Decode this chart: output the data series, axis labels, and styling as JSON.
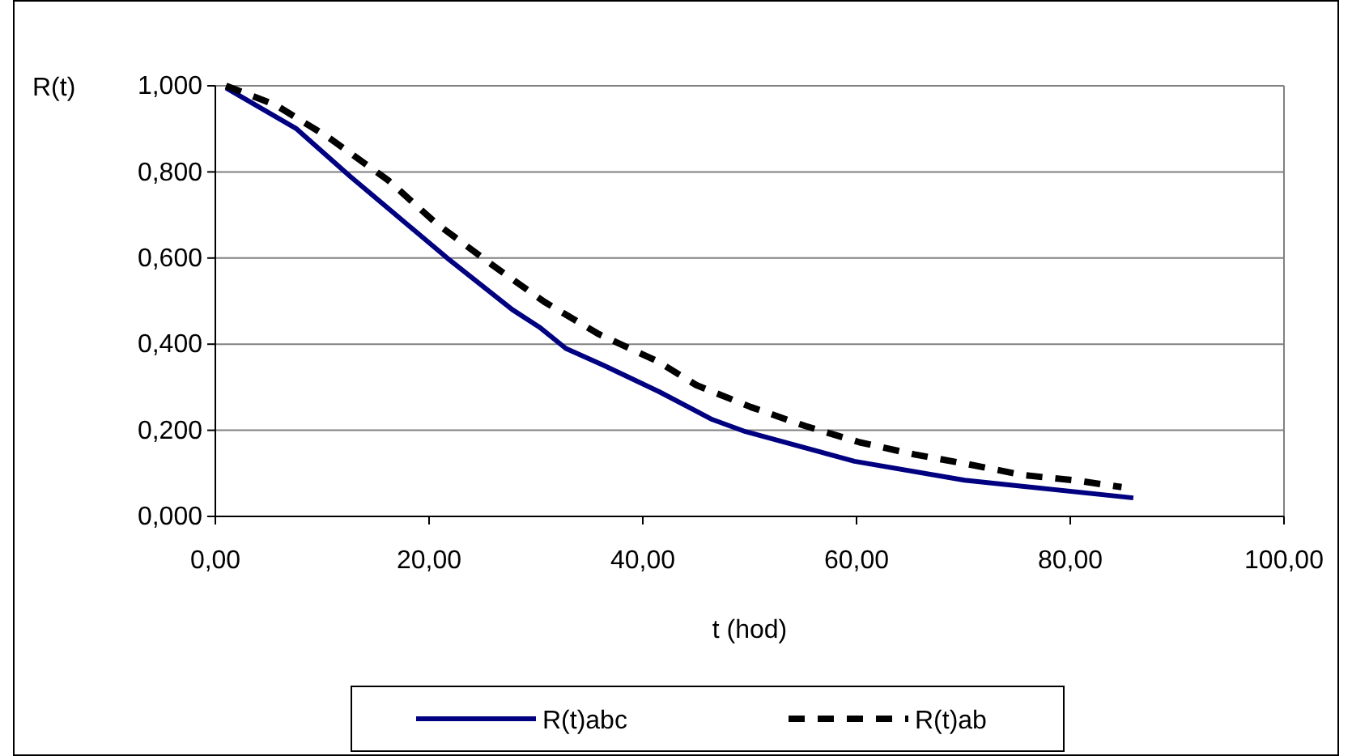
{
  "chart_data": {
    "type": "line",
    "xlabel": "t (hod)",
    "ylabel": "R(t)",
    "xlim": [
      0,
      100
    ],
    "ylim": [
      0,
      1
    ],
    "xticks": [
      {
        "value": 0,
        "label": "0,00"
      },
      {
        "value": 20,
        "label": "20,00"
      },
      {
        "value": 40,
        "label": "40,00"
      },
      {
        "value": 60,
        "label": "60,00"
      },
      {
        "value": 80,
        "label": "80,00"
      },
      {
        "value": 100,
        "label": "100,00"
      }
    ],
    "yticks": [
      {
        "value": 0,
        "label": "0,000"
      },
      {
        "value": 0.2,
        "label": "0,200"
      },
      {
        "value": 0.4,
        "label": "0,400"
      },
      {
        "value": 0.6,
        "label": "0,600"
      },
      {
        "value": 0.8,
        "label": "0,800"
      },
      {
        "value": 1,
        "label": "1,000"
      }
    ],
    "grid": "y",
    "legend": "bottom",
    "marker": "none",
    "series": [
      {
        "name": "R(t)abc",
        "color": "#000080",
        "line_style": "solid",
        "x": [
          1,
          7.6,
          12.6,
          21.7,
          27.8,
          30.3,
          32.8,
          36.4,
          41.5,
          46.5,
          49.6,
          59.8,
          70.1,
          85.9
        ],
        "values": [
          0.995,
          0.9,
          0.79,
          0.6,
          0.48,
          0.44,
          0.39,
          0.35,
          0.29,
          0.225,
          0.197,
          0.128,
          0.084,
          0.043
        ]
      },
      {
        "name": "R(t)ab",
        "color": "#000000",
        "line_style": "dashed",
        "x": [
          1,
          5.6,
          10.6,
          16.2,
          20.7,
          25.8,
          30.8,
          35.9,
          41.4,
          45,
          50.1,
          55.2,
          60.3,
          65.4,
          70.5,
          75.6,
          80.7,
          84.8
        ],
        "values": [
          1,
          0.956,
          0.88,
          0.78,
          0.68,
          0.586,
          0.498,
          0.423,
          0.36,
          0.305,
          0.254,
          0.21,
          0.172,
          0.144,
          0.121,
          0.096,
          0.083,
          0.068
        ]
      }
    ]
  }
}
